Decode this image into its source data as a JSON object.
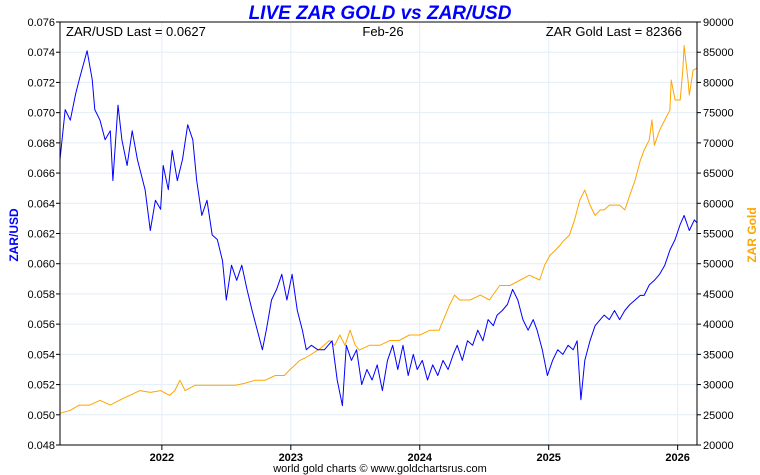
{
  "chart_data": {
    "type": "line",
    "title": "LIVE ZAR GOLD vs ZAR/USD",
    "annotations": {
      "left": "ZAR/USD Last = 0.0627",
      "center": "Feb-26",
      "right": "ZAR Gold Last = 82366"
    },
    "footer": "world gold charts © www.goldchartsrus.com",
    "xlim": [
      2021.21,
      2026.15
    ],
    "x_ticks": [
      2022,
      2023,
      2024,
      2025,
      2026
    ],
    "x_tick_labels": [
      "2022",
      "2023",
      "2024",
      "2025",
      "2026"
    ],
    "y_left": {
      "label": "ZAR/USD",
      "lim": [
        0.048,
        0.076
      ],
      "ticks": [
        "0.048",
        "0.050",
        "0.052",
        "0.054",
        "0.056",
        "0.058",
        "0.060",
        "0.062",
        "0.064",
        "0.066",
        "0.068",
        "0.070",
        "0.072",
        "0.074",
        "0.076"
      ]
    },
    "y_right": {
      "label": "ZAR Gold",
      "lim": [
        20000,
        90000
      ],
      "ticks": [
        "20000",
        "25000",
        "30000",
        "35000",
        "40000",
        "45000",
        "50000",
        "55000",
        "60000",
        "65000",
        "70000",
        "75000",
        "80000",
        "85000",
        "90000"
      ]
    },
    "grid": true,
    "colors": {
      "zarusd": "#0000ff",
      "gold": "#ffa500",
      "title": "#0000ff",
      "grid": "#e3eef7"
    },
    "series": [
      {
        "name": "ZAR/USD",
        "axis": "left",
        "points": [
          [
            2021.21,
            0.0669
          ],
          [
            2021.25,
            0.0702
          ],
          [
            2021.29,
            0.0695
          ],
          [
            2021.33,
            0.0712
          ],
          [
            2021.36,
            0.0722
          ],
          [
            2021.42,
            0.0741
          ],
          [
            2021.46,
            0.0722
          ],
          [
            2021.48,
            0.0702
          ],
          [
            2021.52,
            0.0695
          ],
          [
            2021.56,
            0.0682
          ],
          [
            2021.6,
            0.0688
          ],
          [
            2021.62,
            0.0655
          ],
          [
            2021.66,
            0.0705
          ],
          [
            2021.69,
            0.0682
          ],
          [
            2021.73,
            0.0665
          ],
          [
            2021.77,
            0.0688
          ],
          [
            2021.81,
            0.0669
          ],
          [
            2021.87,
            0.0649
          ],
          [
            2021.91,
            0.0622
          ],
          [
            2021.95,
            0.0642
          ],
          [
            2021.99,
            0.0636
          ],
          [
            2022.01,
            0.0665
          ],
          [
            2022.05,
            0.0649
          ],
          [
            2022.08,
            0.0675
          ],
          [
            2022.12,
            0.0655
          ],
          [
            2022.16,
            0.0669
          ],
          [
            2022.2,
            0.0692
          ],
          [
            2022.24,
            0.0682
          ],
          [
            2022.27,
            0.0655
          ],
          [
            2022.31,
            0.0632
          ],
          [
            2022.35,
            0.0642
          ],
          [
            2022.39,
            0.0619
          ],
          [
            2022.43,
            0.0616
          ],
          [
            2022.47,
            0.0602
          ],
          [
            2022.5,
            0.0576
          ],
          [
            2022.54,
            0.0599
          ],
          [
            2022.58,
            0.0589
          ],
          [
            2022.62,
            0.0599
          ],
          [
            2022.66,
            0.0583
          ],
          [
            2022.7,
            0.0569
          ],
          [
            2022.74,
            0.0556
          ],
          [
            2022.78,
            0.0543
          ],
          [
            2022.81,
            0.0556
          ],
          [
            2022.85,
            0.0576
          ],
          [
            2022.89,
            0.0583
          ],
          [
            2022.93,
            0.0593
          ],
          [
            2022.97,
            0.0576
          ],
          [
            2023.01,
            0.0593
          ],
          [
            2023.05,
            0.0569
          ],
          [
            2023.09,
            0.0556
          ],
          [
            2023.12,
            0.0543
          ],
          [
            2023.16,
            0.0546
          ],
          [
            2023.21,
            0.0543
          ],
          [
            2023.26,
            0.0543
          ],
          [
            2023.32,
            0.0549
          ],
          [
            2023.36,
            0.0523
          ],
          [
            2023.4,
            0.0506
          ],
          [
            2023.43,
            0.0546
          ],
          [
            2023.47,
            0.0536
          ],
          [
            2023.51,
            0.0543
          ],
          [
            2023.55,
            0.052
          ],
          [
            2023.59,
            0.053
          ],
          [
            2023.63,
            0.0523
          ],
          [
            2023.67,
            0.0533
          ],
          [
            2023.71,
            0.0516
          ],
          [
            2023.75,
            0.0536
          ],
          [
            2023.79,
            0.0546
          ],
          [
            2023.83,
            0.053
          ],
          [
            2023.87,
            0.0546
          ],
          [
            2023.91,
            0.0526
          ],
          [
            2023.95,
            0.054
          ],
          [
            2023.98,
            0.053
          ],
          [
            2024.02,
            0.0536
          ],
          [
            2024.06,
            0.0523
          ],
          [
            2024.1,
            0.0533
          ],
          [
            2024.14,
            0.0526
          ],
          [
            2024.18,
            0.0536
          ],
          [
            2024.22,
            0.053
          ],
          [
            2024.26,
            0.054
          ],
          [
            2024.29,
            0.0546
          ],
          [
            2024.33,
            0.0536
          ],
          [
            2024.37,
            0.0549
          ],
          [
            2024.41,
            0.0546
          ],
          [
            2024.45,
            0.0556
          ],
          [
            2024.49,
            0.0549
          ],
          [
            2024.53,
            0.0563
          ],
          [
            2024.57,
            0.0559
          ],
          [
            2024.6,
            0.0566
          ],
          [
            2024.64,
            0.0569
          ],
          [
            2024.68,
            0.0573
          ],
          [
            2024.72,
            0.0583
          ],
          [
            2024.76,
            0.0576
          ],
          [
            2024.8,
            0.0563
          ],
          [
            2024.84,
            0.0556
          ],
          [
            2024.88,
            0.0563
          ],
          [
            2024.91,
            0.0556
          ],
          [
            2024.95,
            0.0543
          ],
          [
            2024.99,
            0.0526
          ],
          [
            2025.03,
            0.0536
          ],
          [
            2025.07,
            0.0543
          ],
          [
            2025.11,
            0.054
          ],
          [
            2025.15,
            0.0546
          ],
          [
            2025.19,
            0.0543
          ],
          [
            2025.22,
            0.0549
          ],
          [
            2025.25,
            0.051
          ],
          [
            2025.28,
            0.0536
          ],
          [
            2025.32,
            0.0549
          ],
          [
            2025.36,
            0.0559
          ],
          [
            2025.4,
            0.0563
          ],
          [
            2025.43,
            0.0566
          ],
          [
            2025.47,
            0.0563
          ],
          [
            2025.51,
            0.0569
          ],
          [
            2025.55,
            0.0563
          ],
          [
            2025.59,
            0.0569
          ],
          [
            2025.63,
            0.0573
          ],
          [
            2025.67,
            0.0576
          ],
          [
            2025.71,
            0.0579
          ],
          [
            2025.74,
            0.0579
          ],
          [
            2025.78,
            0.0586
          ],
          [
            2025.82,
            0.0589
          ],
          [
            2025.86,
            0.0593
          ],
          [
            2025.9,
            0.0599
          ],
          [
            2025.94,
            0.0609
          ],
          [
            2025.98,
            0.0616
          ],
          [
            2026.02,
            0.0626
          ],
          [
            2026.05,
            0.0632
          ],
          [
            2026.09,
            0.0622
          ],
          [
            2026.13,
            0.0629
          ],
          [
            2026.15,
            0.0627
          ]
        ]
      },
      {
        "name": "ZAR Gold",
        "axis": "right",
        "points": [
          [
            2021.21,
            25250
          ],
          [
            2021.29,
            25750
          ],
          [
            2021.36,
            26600
          ],
          [
            2021.44,
            26600
          ],
          [
            2021.52,
            27400
          ],
          [
            2021.6,
            26600
          ],
          [
            2021.67,
            27400
          ],
          [
            2021.75,
            28200
          ],
          [
            2021.83,
            29000
          ],
          [
            2021.91,
            28700
          ],
          [
            2021.99,
            29000
          ],
          [
            2022.06,
            28200
          ],
          [
            2022.1,
            29000
          ],
          [
            2022.14,
            30700
          ],
          [
            2022.18,
            29000
          ],
          [
            2022.26,
            29900
          ],
          [
            2022.33,
            29900
          ],
          [
            2022.41,
            29900
          ],
          [
            2022.49,
            29900
          ],
          [
            2022.57,
            29900
          ],
          [
            2022.64,
            30200
          ],
          [
            2022.72,
            30700
          ],
          [
            2022.8,
            30700
          ],
          [
            2022.88,
            31500
          ],
          [
            2022.95,
            31500
          ],
          [
            2022.99,
            32400
          ],
          [
            2023.03,
            33200
          ],
          [
            2023.07,
            34000
          ],
          [
            2023.11,
            34400
          ],
          [
            2023.15,
            34900
          ],
          [
            2023.23,
            36000
          ],
          [
            2023.3,
            37300
          ],
          [
            2023.34,
            36500
          ],
          [
            2023.38,
            38200
          ],
          [
            2023.42,
            36500
          ],
          [
            2023.46,
            39000
          ],
          [
            2023.5,
            36500
          ],
          [
            2023.53,
            35700
          ],
          [
            2023.61,
            36500
          ],
          [
            2023.69,
            36500
          ],
          [
            2023.77,
            37300
          ],
          [
            2023.84,
            37300
          ],
          [
            2023.92,
            38200
          ],
          [
            2024.0,
            38200
          ],
          [
            2024.08,
            39000
          ],
          [
            2024.15,
            39000
          ],
          [
            2024.23,
            43100
          ],
          [
            2024.27,
            44800
          ],
          [
            2024.31,
            44000
          ],
          [
            2024.39,
            44000
          ],
          [
            2024.47,
            44800
          ],
          [
            2024.54,
            44000
          ],
          [
            2024.62,
            46400
          ],
          [
            2024.7,
            46400
          ],
          [
            2024.78,
            47300
          ],
          [
            2024.85,
            48100
          ],
          [
            2024.93,
            47300
          ],
          [
            2024.97,
            49800
          ],
          [
            2025.01,
            51400
          ],
          [
            2025.05,
            52200
          ],
          [
            2025.09,
            53100
          ],
          [
            2025.12,
            53900
          ],
          [
            2025.16,
            54700
          ],
          [
            2025.2,
            57200
          ],
          [
            2025.24,
            60500
          ],
          [
            2025.28,
            62200
          ],
          [
            2025.32,
            59700
          ],
          [
            2025.36,
            58000
          ],
          [
            2025.4,
            58900
          ],
          [
            2025.43,
            58900
          ],
          [
            2025.47,
            59700
          ],
          [
            2025.51,
            59700
          ],
          [
            2025.55,
            59700
          ],
          [
            2025.59,
            58900
          ],
          [
            2025.63,
            61400
          ],
          [
            2025.67,
            63800
          ],
          [
            2025.71,
            67100
          ],
          [
            2025.74,
            68800
          ],
          [
            2025.78,
            70500
          ],
          [
            2025.8,
            73800
          ],
          [
            2025.82,
            69600
          ],
          [
            2025.86,
            72100
          ],
          [
            2025.9,
            73800
          ],
          [
            2025.94,
            75400
          ],
          [
            2025.95,
            80400
          ],
          [
            2025.98,
            77100
          ],
          [
            2026.02,
            77100
          ],
          [
            2026.04,
            82000
          ],
          [
            2026.05,
            86100
          ],
          [
            2026.08,
            80400
          ],
          [
            2026.09,
            77900
          ],
          [
            2026.12,
            82000
          ],
          [
            2026.15,
            82366
          ]
        ]
      }
    ]
  }
}
